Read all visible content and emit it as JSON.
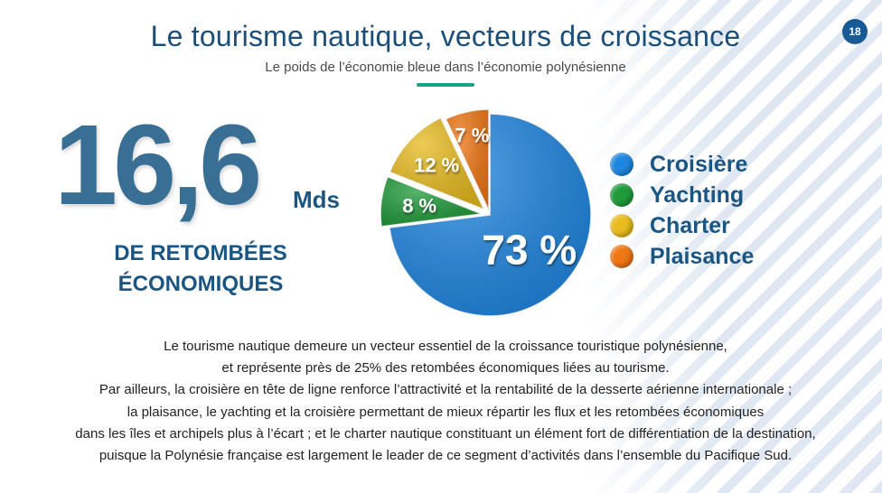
{
  "header": {
    "title": "Le tourisme nautique, vecteurs de croissance",
    "subtitle": "Le poids de l’économie bleue dans l’économie polynésienne",
    "page_number": "18"
  },
  "highlight": {
    "value": "16,6",
    "unit": "Mds",
    "caption_line1": "DE RETOMBÉES",
    "caption_line2": "ÉCONOMIQUES"
  },
  "chart_data": {
    "type": "pie",
    "title": "",
    "slices": [
      {
        "name": "Croisière",
        "value": 73,
        "label": "73 %",
        "color": "#1f86e0"
      },
      {
        "name": "Yachting",
        "value": 8,
        "label": "8 %",
        "color": "#1f9a39"
      },
      {
        "name": "Charter",
        "value": 12,
        "label": "12 %",
        "color": "#e8bb1e"
      },
      {
        "name": "Plaisance",
        "value": 7,
        "label": "7 %",
        "color": "#ef7613"
      }
    ],
    "legend_position": "right"
  },
  "body": {
    "lines": [
      "Le tourisme nautique demeure un vecteur essentiel de la croissance touristique polynésienne,",
      "et représente près de 25% des retombées économiques liées au tourisme.",
      "Par ailleurs, la croisière en tête de ligne renforce l’attractivité et la rentabilité de la desserte aérienne internationale ;",
      "la plaisance, le yachting et la croisière permettant de mieux répartir les flux et les retombées économiques",
      "dans les îles et archipels plus à l’écart ; et le charter nautique constituant un élément fort de différentiation de la destination,",
      "puisque la Polynésie française est largement le leader de ce segment d’activités dans l’ensemble du Pacifique Sud."
    ]
  },
  "colors": {
    "title": "#1b4f7a",
    "accent": "#16a488",
    "badge": "#175a96",
    "big_number": "#3a6f95"
  }
}
